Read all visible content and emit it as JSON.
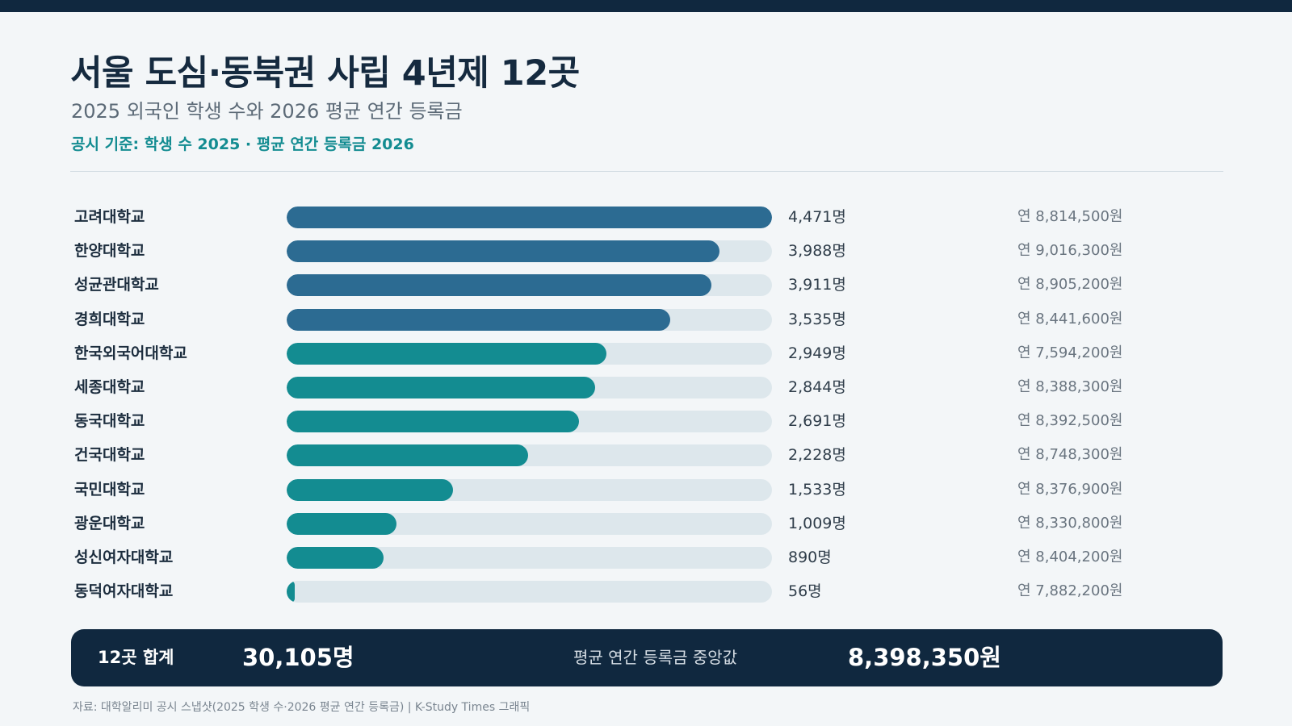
{
  "header": {
    "title": "서울 도심·동북권 사립 4년제 12곳",
    "subtitle": "2025 외국인 학생 수와 2026 평균 연간 등록금",
    "basis": "공시 기준: 학생 수 2025 · 평균 연간 등록금 2026"
  },
  "colors": {
    "top_tier": "#2c6b92",
    "lower_tier": "#138c91",
    "track": "#dde7ec",
    "summary_bg": "#10283f"
  },
  "chart_data": {
    "type": "bar",
    "orientation": "horizontal",
    "xlim": [
      0,
      4471
    ],
    "count_unit": "명",
    "rows": [
      {
        "name": "고려대학교",
        "students": 4471,
        "students_label": "4,471명",
        "fee_label": "연 8,814,500원",
        "fee": 8814500
      },
      {
        "name": "한양대학교",
        "students": 3988,
        "students_label": "3,988명",
        "fee_label": "연 9,016,300원",
        "fee": 9016300
      },
      {
        "name": "성균관대학교",
        "students": 3911,
        "students_label": "3,911명",
        "fee_label": "연 8,905,200원",
        "fee": 8905200
      },
      {
        "name": "경희대학교",
        "students": 3535,
        "students_label": "3,535명",
        "fee_label": "연 8,441,600원",
        "fee": 8441600
      },
      {
        "name": "한국외국어대학교",
        "students": 2949,
        "students_label": "2,949명",
        "fee_label": "연 7,594,200원",
        "fee": 7594200
      },
      {
        "name": "세종대학교",
        "students": 2844,
        "students_label": "2,844명",
        "fee_label": "연 8,388,300원",
        "fee": 8388300
      },
      {
        "name": "동국대학교",
        "students": 2691,
        "students_label": "2,691명",
        "fee_label": "연 8,392,500원",
        "fee": 8392500
      },
      {
        "name": "건국대학교",
        "students": 2228,
        "students_label": "2,228명",
        "fee_label": "연 8,748,300원",
        "fee": 8748300
      },
      {
        "name": "국민대학교",
        "students": 1533,
        "students_label": "1,533명",
        "fee_label": "연 8,376,900원",
        "fee": 8376900
      },
      {
        "name": "광운대학교",
        "students": 1009,
        "students_label": "1,009명",
        "fee_label": "연 8,330,800원",
        "fee": 8330800
      },
      {
        "name": "성신여자대학교",
        "students": 890,
        "students_label": "890명",
        "fee_label": "연 8,404,200원",
        "fee": 8404200
      },
      {
        "name": "동덕여자대학교",
        "students": 56,
        "students_label": "56명",
        "fee_label": "연 7,882,200원",
        "fee": 7882200
      }
    ]
  },
  "summary": {
    "label": "12곳 합계",
    "total": "30,105명",
    "median_label": "평균 연간 등록금 중앙값",
    "median": "8,398,350원"
  },
  "source": "자료: 대학알리미 공시 스냅샷(2025 학생 수·2026 평균 연간 등록금)  |  K-Study Times 그래픽"
}
